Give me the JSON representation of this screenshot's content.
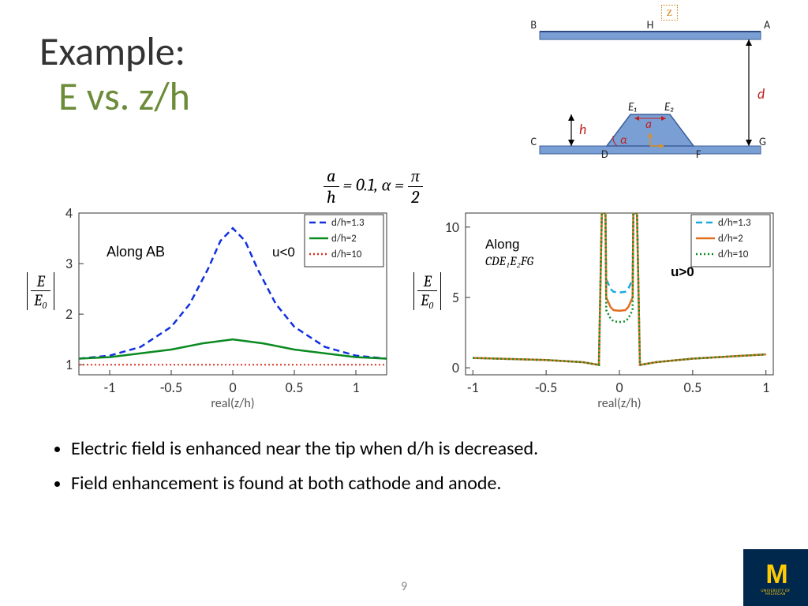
{
  "title": {
    "main": "Example:",
    "sub": "E vs. z/h"
  },
  "equation": {
    "a_over_h": "0.1",
    "alpha": "π/2"
  },
  "schematic": {
    "labels": {
      "B": "B",
      "H": "H",
      "A": "A",
      "C": "C",
      "D": "D",
      "F": "F",
      "G": "G",
      "E1": "E₁",
      "E2": "E₂",
      "h": "h",
      "d": "d",
      "a": "a",
      "alpha": "α",
      "z": "z"
    },
    "colors": {
      "plate": "#7a9fd4",
      "plate_border": "#3c5f99",
      "h": "#c02020",
      "d": "#c02020",
      "a": "#c02020",
      "alpha": "#c02020",
      "text": "#222"
    }
  },
  "chart_left": {
    "type": "line",
    "title_annotation": "Along AB",
    "region_label": "u<0",
    "xlabel": "real(z/h)",
    "xlim": [
      -1.25,
      1.25
    ],
    "xticks": [
      -1,
      -0.5,
      0,
      0.5,
      1
    ],
    "ylim": [
      0.8,
      4.0
    ],
    "yticks": [
      1,
      2,
      3,
      4
    ],
    "series": [
      {
        "name": "d/h=1.3",
        "color": "#1030e0",
        "dash": "8,5",
        "width": 2.5,
        "x": [
          -1.25,
          -1,
          -0.75,
          -0.5,
          -0.35,
          -0.2,
          -0.1,
          0,
          0.1,
          0.2,
          0.35,
          0.5,
          0.75,
          1,
          1.25
        ],
        "y": [
          1.12,
          1.18,
          1.35,
          1.75,
          2.2,
          2.9,
          3.45,
          3.7,
          3.45,
          2.9,
          2.2,
          1.75,
          1.35,
          1.18,
          1.12
        ]
      },
      {
        "name": "d/h=2",
        "color": "#0a8a20",
        "dash": "",
        "width": 2.5,
        "x": [
          -1.25,
          -1,
          -0.5,
          -0.25,
          0,
          0.25,
          0.5,
          1,
          1.25
        ],
        "y": [
          1.12,
          1.15,
          1.3,
          1.42,
          1.5,
          1.42,
          1.3,
          1.15,
          1.12
        ]
      },
      {
        "name": "d/h=10",
        "color": "#e03020",
        "dash": "2,3",
        "width": 2,
        "x": [
          -1.25,
          1.25
        ],
        "y": [
          1.0,
          1.0
        ]
      }
    ],
    "axis_color": "#333",
    "grid": false,
    "background": "#ffffff",
    "label_fontsize": 16,
    "tick_fontsize": 18
  },
  "chart_right": {
    "type": "line",
    "title_annotation": "Along",
    "sub_annotation": "CDE₁E₂FG",
    "region_label": "u>0",
    "xlabel": "real(z/h)",
    "xlim": [
      -1.05,
      1.05
    ],
    "xticks": [
      -1,
      -0.5,
      0,
      0.5,
      1
    ],
    "ylim": [
      -0.5,
      11
    ],
    "yticks": [
      0,
      5,
      10
    ],
    "series": [
      {
        "name": "d/h=1.3",
        "color": "#1ca8e0",
        "dash": "8,5",
        "width": 2.5,
        "x": [
          -1,
          -0.5,
          -0.25,
          -0.14,
          -0.12,
          -0.095,
          -0.09,
          -0.06,
          -0.04,
          0,
          0.04,
          0.06,
          0.09,
          0.095,
          0.12,
          0.14,
          0.25,
          0.5,
          1
        ],
        "y": [
          0.7,
          0.55,
          0.4,
          0.2,
          11,
          11,
          6.3,
          5.6,
          5.4,
          5.35,
          5.4,
          5.6,
          6.3,
          11,
          11,
          0.2,
          0.4,
          0.65,
          0.95
        ]
      },
      {
        "name": "d/h=2",
        "color": "#e07020",
        "dash": "",
        "width": 2.5,
        "x": [
          -1,
          -0.5,
          -0.25,
          -0.14,
          -0.12,
          -0.095,
          -0.09,
          -0.06,
          -0.04,
          0,
          0.04,
          0.06,
          0.09,
          0.095,
          0.12,
          0.14,
          0.25,
          0.5,
          1
        ],
        "y": [
          0.7,
          0.55,
          0.4,
          0.2,
          11,
          11,
          5.0,
          4.3,
          4.1,
          4.05,
          4.1,
          4.3,
          5.0,
          11,
          11,
          0.2,
          0.4,
          0.65,
          0.95
        ]
      },
      {
        "name": "d/h=10",
        "color": "#0a8a20",
        "dash": "2,3",
        "width": 2.5,
        "x": [
          -1,
          -0.5,
          -0.25,
          -0.14,
          -0.12,
          -0.095,
          -0.09,
          -0.06,
          -0.04,
          0,
          0.04,
          0.06,
          0.09,
          0.095,
          0.12,
          0.14,
          0.25,
          0.5,
          1
        ],
        "y": [
          0.7,
          0.55,
          0.4,
          0.2,
          11,
          11,
          4.1,
          3.5,
          3.3,
          3.25,
          3.3,
          3.5,
          4.1,
          11,
          11,
          0.2,
          0.4,
          0.65,
          0.95
        ]
      }
    ],
    "axis_color": "#333",
    "grid": false,
    "background": "#ffffff",
    "label_fontsize": 16,
    "tick_fontsize": 18
  },
  "ylabel": {
    "num": "E",
    "den": "E₀"
  },
  "bullets": [
    "Electric field is enhanced near the tip when d/h is decreased.",
    "Field enhancement is found at both cathode and anode."
  ],
  "pagenum": "9",
  "logo": {
    "letter": "M",
    "text1": "UNIVERSITY OF",
    "text2": "MICHIGAN"
  }
}
